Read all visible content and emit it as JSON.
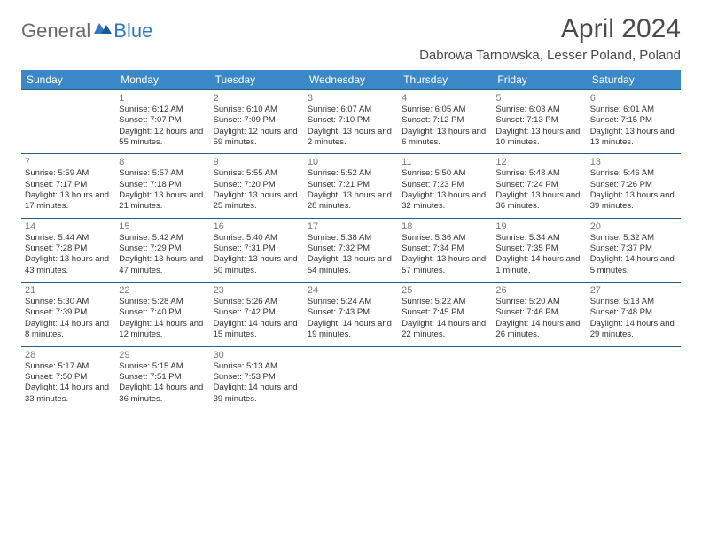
{
  "logo": {
    "text1": "General",
    "text2": "Blue"
  },
  "title": "April 2024",
  "location": "Dabrowa Tarnowska, Lesser Poland, Poland",
  "colors": {
    "header_bg": "#3b88c8",
    "header_text": "#ffffff",
    "row_border": "#2a5c8a",
    "logo_gray": "#6a6a6a",
    "logo_blue": "#2f78c4",
    "title_color": "#4a4a4a",
    "text_color": "#333333",
    "daynum_color": "#7a7a7a"
  },
  "weekdays": [
    "Sunday",
    "Monday",
    "Tuesday",
    "Wednesday",
    "Thursday",
    "Friday",
    "Saturday"
  ],
  "weeks": [
    [
      {
        "n": "",
        "sr": "",
        "ss": "",
        "dl": ""
      },
      {
        "n": "1",
        "sr": "Sunrise: 6:12 AM",
        "ss": "Sunset: 7:07 PM",
        "dl": "Daylight: 12 hours and 55 minutes."
      },
      {
        "n": "2",
        "sr": "Sunrise: 6:10 AM",
        "ss": "Sunset: 7:09 PM",
        "dl": "Daylight: 12 hours and 59 minutes."
      },
      {
        "n": "3",
        "sr": "Sunrise: 6:07 AM",
        "ss": "Sunset: 7:10 PM",
        "dl": "Daylight: 13 hours and 2 minutes."
      },
      {
        "n": "4",
        "sr": "Sunrise: 6:05 AM",
        "ss": "Sunset: 7:12 PM",
        "dl": "Daylight: 13 hours and 6 minutes."
      },
      {
        "n": "5",
        "sr": "Sunrise: 6:03 AM",
        "ss": "Sunset: 7:13 PM",
        "dl": "Daylight: 13 hours and 10 minutes."
      },
      {
        "n": "6",
        "sr": "Sunrise: 6:01 AM",
        "ss": "Sunset: 7:15 PM",
        "dl": "Daylight: 13 hours and 13 minutes."
      }
    ],
    [
      {
        "n": "7",
        "sr": "Sunrise: 5:59 AM",
        "ss": "Sunset: 7:17 PM",
        "dl": "Daylight: 13 hours and 17 minutes."
      },
      {
        "n": "8",
        "sr": "Sunrise: 5:57 AM",
        "ss": "Sunset: 7:18 PM",
        "dl": "Daylight: 13 hours and 21 minutes."
      },
      {
        "n": "9",
        "sr": "Sunrise: 5:55 AM",
        "ss": "Sunset: 7:20 PM",
        "dl": "Daylight: 13 hours and 25 minutes."
      },
      {
        "n": "10",
        "sr": "Sunrise: 5:52 AM",
        "ss": "Sunset: 7:21 PM",
        "dl": "Daylight: 13 hours and 28 minutes."
      },
      {
        "n": "11",
        "sr": "Sunrise: 5:50 AM",
        "ss": "Sunset: 7:23 PM",
        "dl": "Daylight: 13 hours and 32 minutes."
      },
      {
        "n": "12",
        "sr": "Sunrise: 5:48 AM",
        "ss": "Sunset: 7:24 PM",
        "dl": "Daylight: 13 hours and 36 minutes."
      },
      {
        "n": "13",
        "sr": "Sunrise: 5:46 AM",
        "ss": "Sunset: 7:26 PM",
        "dl": "Daylight: 13 hours and 39 minutes."
      }
    ],
    [
      {
        "n": "14",
        "sr": "Sunrise: 5:44 AM",
        "ss": "Sunset: 7:28 PM",
        "dl": "Daylight: 13 hours and 43 minutes."
      },
      {
        "n": "15",
        "sr": "Sunrise: 5:42 AM",
        "ss": "Sunset: 7:29 PM",
        "dl": "Daylight: 13 hours and 47 minutes."
      },
      {
        "n": "16",
        "sr": "Sunrise: 5:40 AM",
        "ss": "Sunset: 7:31 PM",
        "dl": "Daylight: 13 hours and 50 minutes."
      },
      {
        "n": "17",
        "sr": "Sunrise: 5:38 AM",
        "ss": "Sunset: 7:32 PM",
        "dl": "Daylight: 13 hours and 54 minutes."
      },
      {
        "n": "18",
        "sr": "Sunrise: 5:36 AM",
        "ss": "Sunset: 7:34 PM",
        "dl": "Daylight: 13 hours and 57 minutes."
      },
      {
        "n": "19",
        "sr": "Sunrise: 5:34 AM",
        "ss": "Sunset: 7:35 PM",
        "dl": "Daylight: 14 hours and 1 minute."
      },
      {
        "n": "20",
        "sr": "Sunrise: 5:32 AM",
        "ss": "Sunset: 7:37 PM",
        "dl": "Daylight: 14 hours and 5 minutes."
      }
    ],
    [
      {
        "n": "21",
        "sr": "Sunrise: 5:30 AM",
        "ss": "Sunset: 7:39 PM",
        "dl": "Daylight: 14 hours and 8 minutes."
      },
      {
        "n": "22",
        "sr": "Sunrise: 5:28 AM",
        "ss": "Sunset: 7:40 PM",
        "dl": "Daylight: 14 hours and 12 minutes."
      },
      {
        "n": "23",
        "sr": "Sunrise: 5:26 AM",
        "ss": "Sunset: 7:42 PM",
        "dl": "Daylight: 14 hours and 15 minutes."
      },
      {
        "n": "24",
        "sr": "Sunrise: 5:24 AM",
        "ss": "Sunset: 7:43 PM",
        "dl": "Daylight: 14 hours and 19 minutes."
      },
      {
        "n": "25",
        "sr": "Sunrise: 5:22 AM",
        "ss": "Sunset: 7:45 PM",
        "dl": "Daylight: 14 hours and 22 minutes."
      },
      {
        "n": "26",
        "sr": "Sunrise: 5:20 AM",
        "ss": "Sunset: 7:46 PM",
        "dl": "Daylight: 14 hours and 26 minutes."
      },
      {
        "n": "27",
        "sr": "Sunrise: 5:18 AM",
        "ss": "Sunset: 7:48 PM",
        "dl": "Daylight: 14 hours and 29 minutes."
      }
    ],
    [
      {
        "n": "28",
        "sr": "Sunrise: 5:17 AM",
        "ss": "Sunset: 7:50 PM",
        "dl": "Daylight: 14 hours and 33 minutes."
      },
      {
        "n": "29",
        "sr": "Sunrise: 5:15 AM",
        "ss": "Sunset: 7:51 PM",
        "dl": "Daylight: 14 hours and 36 minutes."
      },
      {
        "n": "30",
        "sr": "Sunrise: 5:13 AM",
        "ss": "Sunset: 7:53 PM",
        "dl": "Daylight: 14 hours and 39 minutes."
      },
      {
        "n": "",
        "sr": "",
        "ss": "",
        "dl": ""
      },
      {
        "n": "",
        "sr": "",
        "ss": "",
        "dl": ""
      },
      {
        "n": "",
        "sr": "",
        "ss": "",
        "dl": ""
      },
      {
        "n": "",
        "sr": "",
        "ss": "",
        "dl": ""
      }
    ]
  ]
}
